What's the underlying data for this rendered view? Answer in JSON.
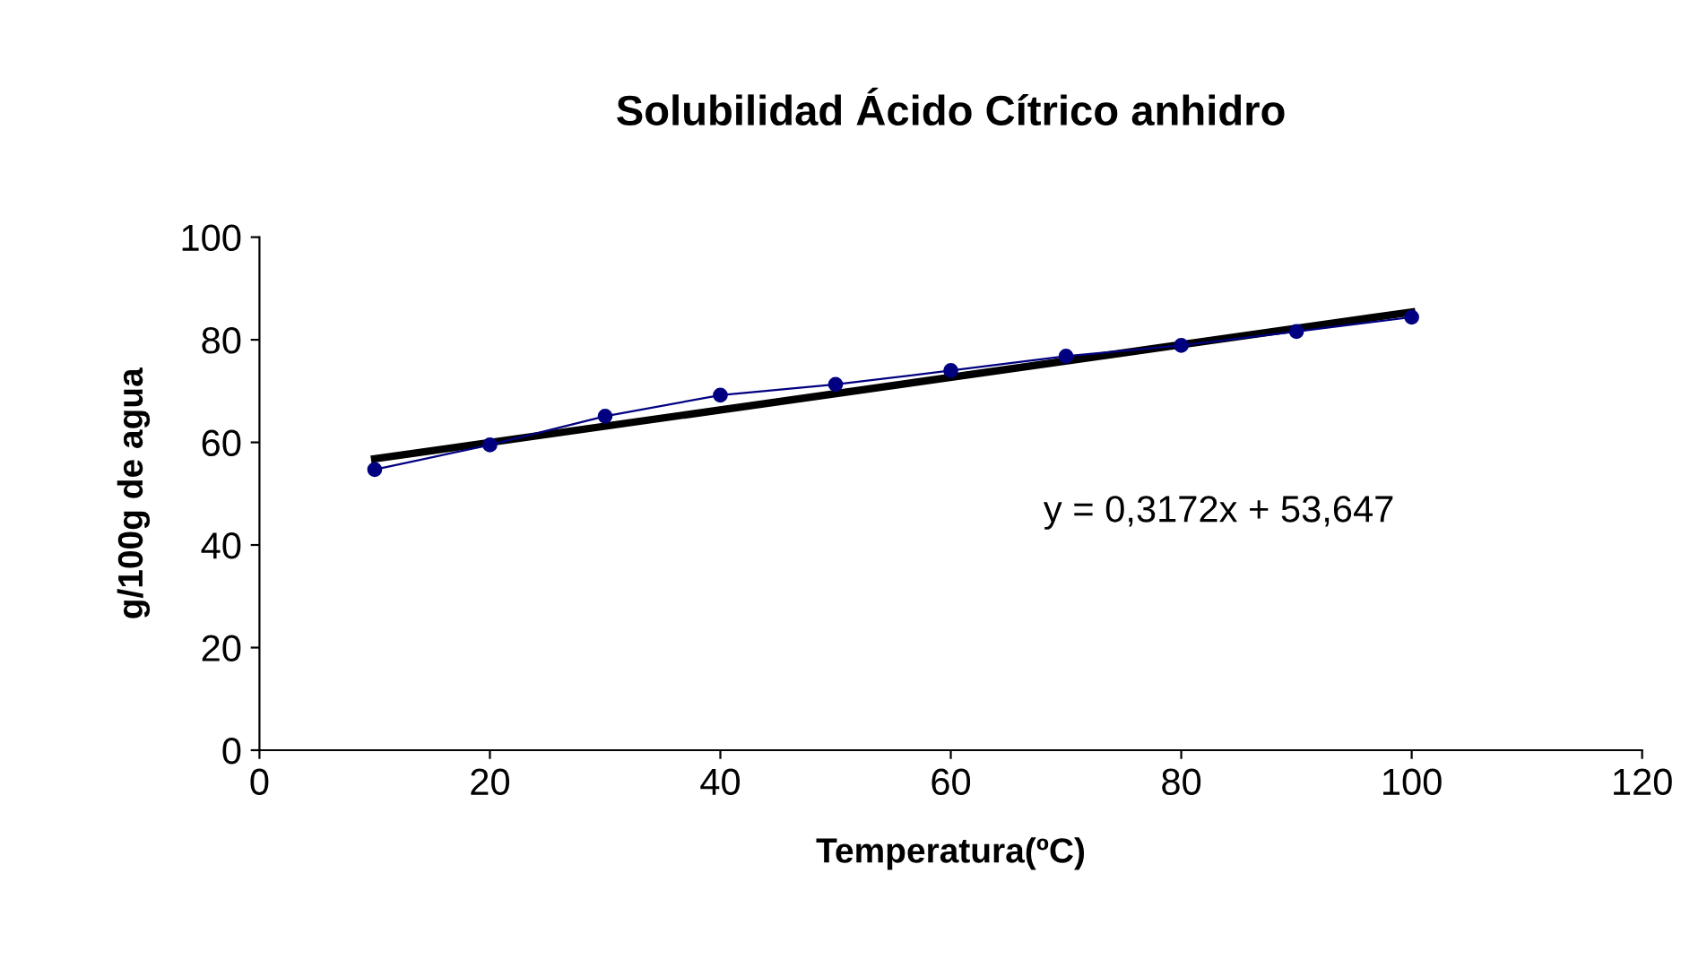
{
  "chart_data": {
    "type": "line",
    "title": "Solubilidad Ácido Cítrico anhidro",
    "xlabel": "Temperatura(ºC)",
    "ylabel": "g/100g de agua",
    "series": [
      {
        "color": "#000080",
        "marker": "circle",
        "x": [
          10,
          20,
          30,
          40,
          50,
          60,
          70,
          80,
          90,
          100
        ],
        "values": [
          54.7,
          59.5,
          65.1,
          69.2,
          71.3,
          74.0,
          76.8,
          78.9,
          81.6,
          84.4
        ]
      },
      {
        "color": "#000000",
        "marker": "none",
        "x": [
          10,
          100
        ],
        "values": [
          56.8,
          85.4
        ]
      }
    ],
    "annotations": [
      "y = 0,3172x + 53,647"
    ],
    "xlim": [
      0,
      120
    ],
    "xticks": [
      0,
      20,
      40,
      60,
      80,
      100,
      120
    ],
    "ylim": [
      0,
      100
    ],
    "yticks": [
      0,
      20,
      40,
      60,
      80,
      100
    ],
    "grid": false
  }
}
